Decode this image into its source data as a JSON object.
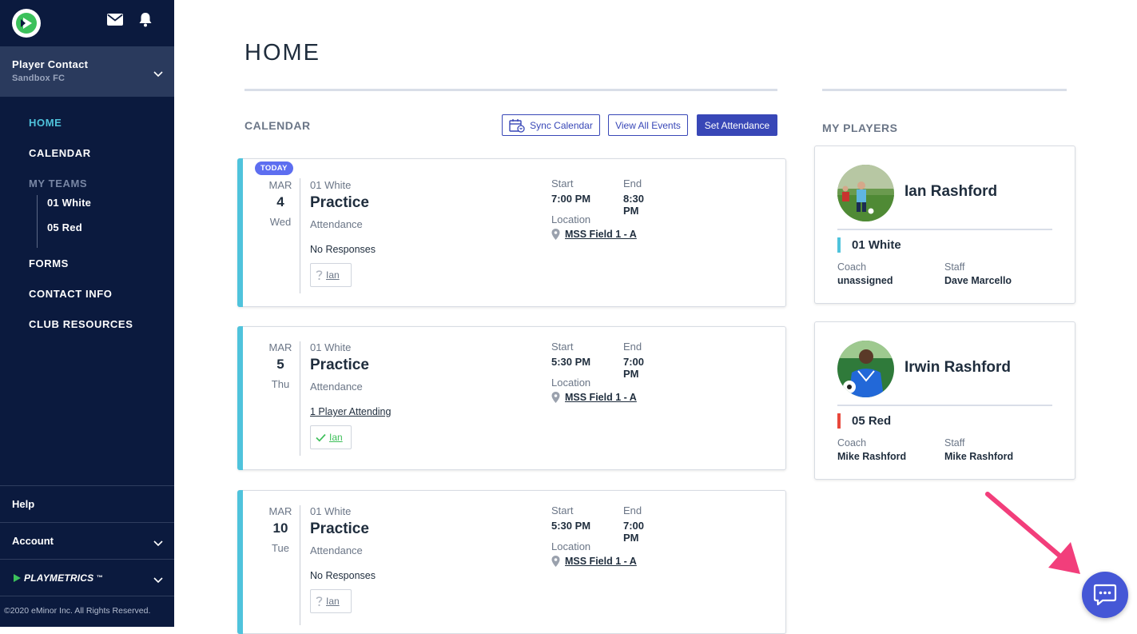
{
  "sidebar": {
    "profile": {
      "name": "Player Contact",
      "club": "Sandbox FC"
    },
    "nav": [
      {
        "label": "HOME",
        "active": true
      },
      {
        "label": "CALENDAR"
      }
    ],
    "my_teams_label": "MY TEAMS",
    "teams": [
      "01 White",
      "05 Red"
    ],
    "nav2": [
      {
        "label": "FORMS"
      },
      {
        "label": "CONTACT INFO"
      },
      {
        "label": "CLUB RESOURCES"
      }
    ],
    "bottom": {
      "help": "Help",
      "account": "Account",
      "brand": "PLAYMETRICS",
      "brand_mark": "™"
    },
    "copyright": "©2020 eMinor Inc. All Rights Reserved."
  },
  "page": {
    "title": "HOME"
  },
  "calendar": {
    "title": "CALENDAR",
    "buttons": {
      "sync": "Sync Calendar",
      "view_all": "View All Events",
      "set_attendance": "Set Attendance"
    },
    "today_badge": "TODAY",
    "labels": {
      "start": "Start",
      "end": "End",
      "location": "Location",
      "attendance": "Attendance"
    },
    "events": [
      {
        "month": "MAR",
        "day": "4",
        "dow": "Wed",
        "team": "01 White",
        "type": "Practice",
        "response": "No Responses",
        "player": "Ian",
        "start": "7:00 PM",
        "end": "8:30 PM",
        "location": "MSS Field 1 - A",
        "status": "unknown",
        "today": true
      },
      {
        "month": "MAR",
        "day": "5",
        "dow": "Thu",
        "team": "01 White",
        "type": "Practice",
        "response": "1 Player Attending",
        "player": "Ian",
        "start": "5:30 PM",
        "end": "7:00 PM",
        "location": "MSS Field 1 - A",
        "status": "attending"
      },
      {
        "month": "MAR",
        "day": "10",
        "dow": "Tue",
        "team": "01 White",
        "type": "Practice",
        "response": "No Responses",
        "player": "Ian",
        "start": "5:30 PM",
        "end": "7:00 PM",
        "location": "MSS Field 1 - A",
        "status": "unknown"
      }
    ]
  },
  "players": {
    "title": "MY PLAYERS",
    "labels": {
      "coach": "Coach",
      "staff": "Staff"
    },
    "list": [
      {
        "name": "Ian Rashford",
        "team": "01 White",
        "team_color": "#4fc3dc",
        "coach": "unassigned",
        "staff": "Dave Marcello"
      },
      {
        "name": "Irwin Rashford",
        "team": "05 Red",
        "team_color": "#e8483c",
        "coach": "Mike Rashford",
        "staff": "Mike Rashford"
      }
    ]
  },
  "colors": {
    "sidebar": "#0b1a3e",
    "accent": "#3847b7",
    "teal": "#4fc3dc",
    "arrow": "#f23e7b",
    "chat": "#4557d6"
  }
}
